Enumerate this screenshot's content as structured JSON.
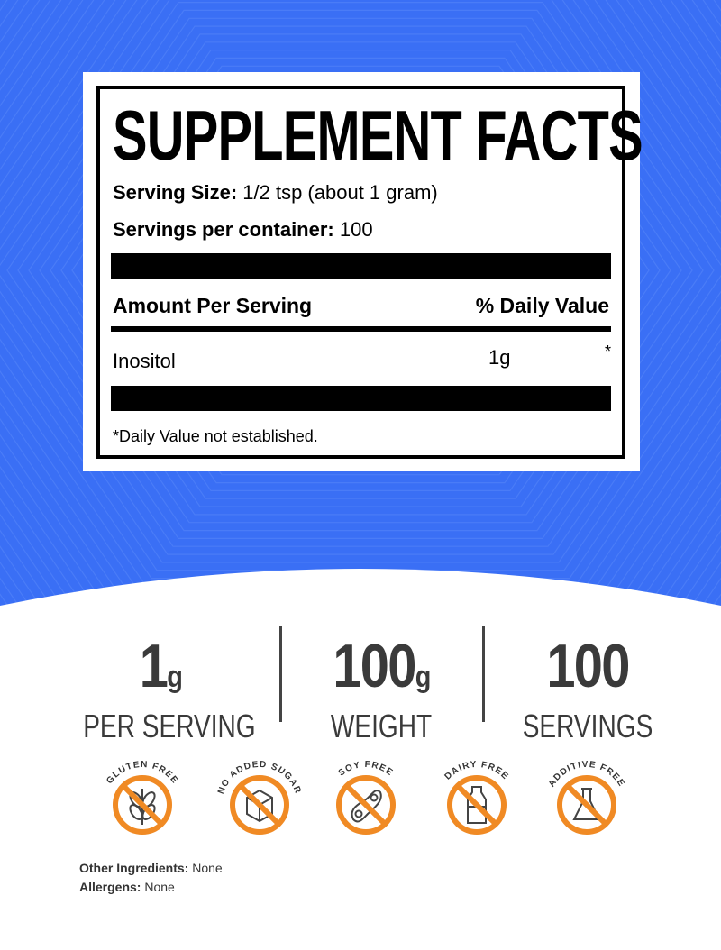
{
  "colors": {
    "background": "#3a6ff5",
    "badge": "#f08a24",
    "icon": "#444444"
  },
  "label": {
    "title": "SUPPLEMENT FACTS",
    "serving_size_label": "Serving Size:",
    "serving_size_value": "1/2 tsp (about 1 gram)",
    "servings_label": "Servings per container:",
    "servings_value": "100",
    "amount_header": "Amount Per Serving",
    "dv_header": "% Daily Value",
    "rows": [
      {
        "name": "Inositol",
        "amount": "1g",
        "dv": "*"
      }
    ],
    "footnote": "*Daily Value not established."
  },
  "stats": [
    {
      "number": "1",
      "unit": "g",
      "label": "PER SERVING"
    },
    {
      "number": "100",
      "unit": "g",
      "label": "WEIGHT"
    },
    {
      "number": "100",
      "unit": "",
      "label": "SERVINGS"
    }
  ],
  "badges": [
    {
      "text": "GLUTEN FREE",
      "icon": "wheat-icon"
    },
    {
      "text": "NO ADDED SUGAR",
      "icon": "sugar-cube-icon"
    },
    {
      "text": "SOY FREE",
      "icon": "soybean-icon"
    },
    {
      "text": "DAIRY FREE",
      "icon": "milk-bottle-icon"
    },
    {
      "text": "ADDITIVE FREE",
      "icon": "flask-icon"
    }
  ],
  "other_ingredients_label": "Other Ingredients:",
  "other_ingredients_value": "None",
  "allergens_label": "Allergens:",
  "allergens_value": "None"
}
